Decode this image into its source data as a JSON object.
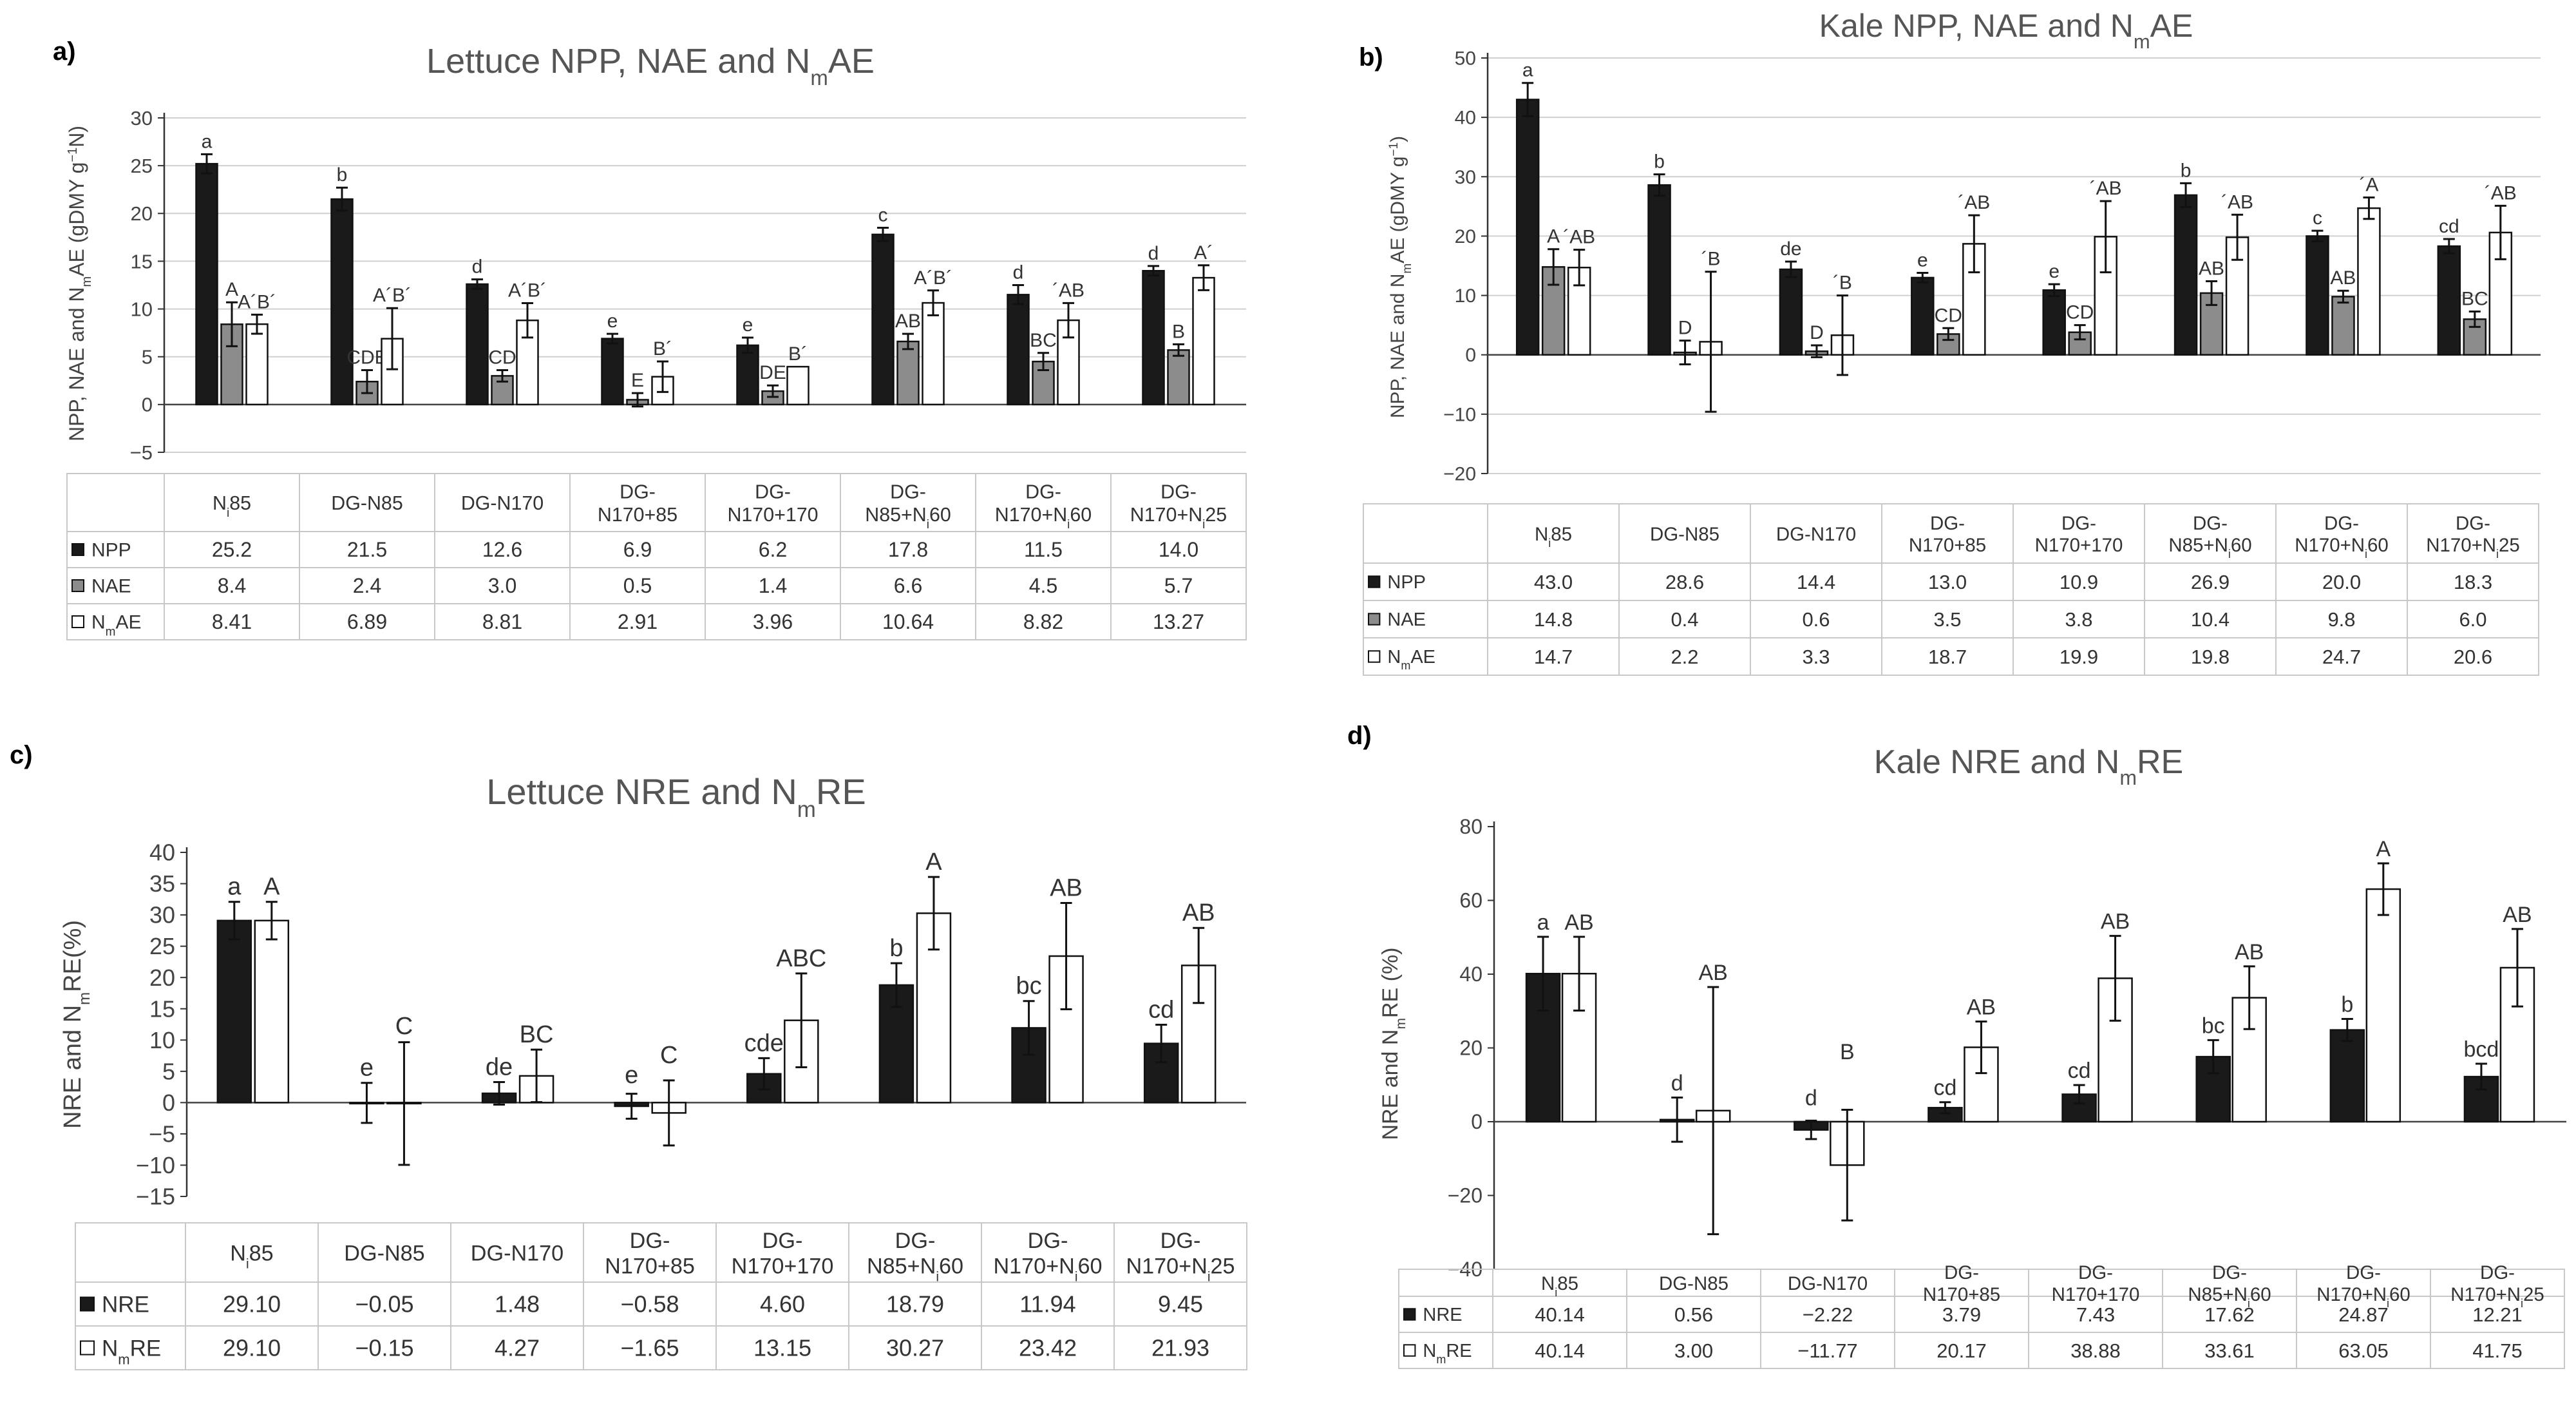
{
  "chart_data": [
    {
      "panel": "a)",
      "type": "bar",
      "title": "Lettuce NPP, NAE and NₘAE",
      "title_parts": [
        "Lettuce NPP, NAE and N",
        "m",
        "AE"
      ],
      "ylabel": "NPP, NAE and NₘAE (gDMY g⁻¹N)",
      "ylabel_parts": [
        "NPP, NAE and N",
        "m",
        "AE (gDMY g",
        "−1",
        "N)"
      ],
      "ylim": [
        -5,
        30
      ],
      "yticks": [
        "−5",
        "0",
        "5",
        "10",
        "15",
        "20",
        "25",
        "30"
      ],
      "ytick_values": [
        -5,
        0,
        5,
        10,
        15,
        20,
        25,
        30
      ],
      "categories": [
        "Nᵢ 85",
        "DG-N85",
        "DG-N170",
        "DG-N170+85",
        "DG-N170+170",
        "DG-N85+Nᵢ 60",
        "DG-N170+Nᵢ 60",
        "DG-N170+Nᵢ 25"
      ],
      "category_parts": [
        [
          [
            "N",
            "i",
            "85"
          ]
        ],
        [
          [
            "DG-N85"
          ]
        ],
        [
          [
            "DG-N170"
          ]
        ],
        [
          [
            "DG-"
          ],
          [
            "N170+85"
          ]
        ],
        [
          [
            "DG-"
          ],
          [
            "N170+170"
          ]
        ],
        [
          [
            "DG-"
          ],
          [
            "N85+N",
            "i",
            "60"
          ]
        ],
        [
          [
            "DG-"
          ],
          [
            "N170+N",
            "i",
            "60"
          ]
        ],
        [
          [
            "DG-"
          ],
          [
            "N170+N",
            "i",
            "25"
          ]
        ]
      ],
      "series": [
        {
          "name": "NPP",
          "legend_parts": [
            "NPP"
          ],
          "color": "#1a1a1a",
          "values": [
            25.2,
            21.5,
            12.6,
            6.9,
            6.2,
            17.8,
            11.5,
            14.0
          ],
          "errors": [
            1.0,
            1.2,
            0.5,
            0.5,
            0.8,
            0.7,
            1.0,
            0.5
          ],
          "table": [
            "25.2",
            "21.5",
            "12.6",
            "6.9",
            "6.2",
            "17.8",
            "11.5",
            "14.0"
          ],
          "letters": [
            "a",
            "b",
            "d",
            "e",
            "e",
            "c",
            "d",
            "d"
          ]
        },
        {
          "name": "NAE",
          "legend_parts": [
            "NAE"
          ],
          "color": "#8c8c8c",
          "values": [
            8.4,
            2.4,
            3.0,
            0.5,
            1.4,
            6.6,
            4.5,
            5.7
          ],
          "errors": [
            2.3,
            1.2,
            0.6,
            0.7,
            0.6,
            0.8,
            0.9,
            0.6
          ],
          "table": [
            "8.4",
            "2.4",
            "3.0",
            "0.5",
            "1.4",
            "6.6",
            "4.5",
            "5.7"
          ],
          "letters": [
            "A",
            "CDE",
            "CD",
            "E",
            "DE",
            "AB",
            "BC",
            "B"
          ]
        },
        {
          "name": "NₘAE",
          "legend_parts": [
            "N",
            "m",
            "AE"
          ],
          "color": "#ffffff",
          "values": [
            8.41,
            6.89,
            8.81,
            2.91,
            3.96,
            10.64,
            8.82,
            13.27
          ],
          "errors": [
            1.0,
            3.2,
            1.8,
            1.6,
            0,
            1.3,
            1.8,
            1.3
          ],
          "table": [
            "8.41",
            "6.89",
            "8.81",
            "2.91",
            "3.96",
            "10.64",
            "8.82",
            "13.27"
          ],
          "letters": [
            "A´B´",
            "A´B´",
            "A´B´",
            "B´",
            "B´",
            "A´B´",
            "´AB",
            "A´"
          ]
        }
      ]
    },
    {
      "panel": "b)",
      "type": "bar",
      "title": "Kale NPP, NAE and NₘAE",
      "title_parts": [
        "Kale NPP, NAE and N",
        "m",
        "AE"
      ],
      "ylabel": "NPP, NAE and NₘAE (gDMY g⁻¹)",
      "ylabel_parts": [
        "NPP, NAE and N",
        "m",
        "AE (gDMY g",
        "−1",
        ")"
      ],
      "ylim": [
        -20,
        50
      ],
      "yticks": [
        "−20",
        "−10",
        "0",
        "10",
        "20",
        "30",
        "40",
        "50"
      ],
      "ytick_values": [
        -20,
        -10,
        0,
        10,
        20,
        30,
        40,
        50
      ],
      "categories": [
        "Nᵢ 85",
        "DG-N85",
        "DG-N170",
        "DG-N170+85",
        "DG-N170+170",
        "DG-N85+Nᵢ 60",
        "DG-N170+Nᵢ 60",
        "DG-N170+Nᵢ 25"
      ],
      "category_parts": [
        [
          [
            "N",
            "i",
            "85"
          ]
        ],
        [
          [
            "DG-N85"
          ]
        ],
        [
          [
            "DG-N170"
          ]
        ],
        [
          [
            "DG-"
          ],
          [
            "N170+85"
          ]
        ],
        [
          [
            "DG-"
          ],
          [
            "N170+170"
          ]
        ],
        [
          [
            "DG-"
          ],
          [
            "N85+N",
            "i",
            "60"
          ]
        ],
        [
          [
            "DG-"
          ],
          [
            "N170+N",
            "i",
            "60"
          ]
        ],
        [
          [
            "DG-"
          ],
          [
            "N170+N",
            "i",
            "25"
          ]
        ]
      ],
      "series": [
        {
          "name": "NPP",
          "legend_parts": [
            "NPP"
          ],
          "color": "#1a1a1a",
          "values": [
            43.0,
            28.6,
            14.4,
            13.0,
            10.9,
            26.9,
            20.0,
            18.3
          ],
          "errors": [
            2.8,
            1.8,
            1.3,
            0.8,
            1.0,
            2.0,
            0.9,
            1.2
          ],
          "table": [
            "43.0",
            "28.6",
            "14.4",
            "13.0",
            "10.9",
            "26.9",
            "20.0",
            "18.3"
          ],
          "letters": [
            "a",
            "b",
            "de",
            "e",
            "e",
            "b",
            "c",
            "cd"
          ]
        },
        {
          "name": "NAE",
          "legend_parts": [
            "NAE"
          ],
          "color": "#8c8c8c",
          "values": [
            14.8,
            0.4,
            0.6,
            3.5,
            3.8,
            10.4,
            9.8,
            6.0
          ],
          "errors": [
            3.0,
            2.0,
            1.0,
            1.0,
            1.2,
            2.0,
            1.0,
            1.3
          ],
          "table": [
            "14.8",
            "0.4",
            "0.6",
            "3.5",
            "3.8",
            "10.4",
            "9.8",
            "6.0"
          ],
          "letters": [
            "A",
            "D",
            "D",
            "CD",
            "CD",
            "AB",
            "AB",
            "BC"
          ]
        },
        {
          "name": "NₘAE",
          "legend_parts": [
            "N",
            "m",
            "AE"
          ],
          "color": "#ffffff",
          "values": [
            14.7,
            2.2,
            3.3,
            18.7,
            19.9,
            19.8,
            24.7,
            20.6
          ],
          "errors": [
            3.0,
            11.8,
            6.7,
            4.8,
            6.0,
            3.8,
            1.8,
            4.5
          ],
          "table": [
            "14.7",
            "2.2",
            "3.3",
            "18.7",
            "19.9",
            "19.8",
            "24.7",
            "20.6"
          ],
          "letters": [
            "´AB",
            "´B",
            "´B",
            "´AB",
            "´AB",
            "´AB",
            "´A",
            "´AB"
          ]
        }
      ]
    },
    {
      "panel": "c)",
      "type": "bar",
      "title": "Lettuce NRE and NₘRE",
      "title_parts": [
        "Lettuce NRE and N",
        "m",
        "RE"
      ],
      "ylabel": "NRE and NₘRE(%)",
      "ylabel_parts": [
        "NRE and N",
        "m",
        "RE(%)"
      ],
      "ylim": [
        -15,
        40
      ],
      "yticks": [
        "−15",
        "−10",
        "−5",
        "0",
        "5",
        "10",
        "15",
        "20",
        "25",
        "30",
        "35",
        "40"
      ],
      "ytick_values": [
        -15,
        -10,
        -5,
        0,
        5,
        10,
        15,
        20,
        25,
        30,
        35,
        40
      ],
      "categories": [
        "Nᵢ 85",
        "DG-N85",
        "DG-N170",
        "DG-N170+85",
        "DG-N170+170",
        "DG-N85+Nᵢ 60",
        "DG-N170+Nᵢ 60",
        "DG-N170+Nᵢ 25"
      ],
      "category_parts": [
        [
          [
            "N",
            "i",
            "85"
          ]
        ],
        [
          [
            "DG-N85"
          ]
        ],
        [
          [
            "DG-N170"
          ]
        ],
        [
          [
            "DG-"
          ],
          [
            "N170+85"
          ]
        ],
        [
          [
            "DG-"
          ],
          [
            "N170+170"
          ]
        ],
        [
          [
            "DG-"
          ],
          [
            "N85+N",
            "i",
            "60"
          ]
        ],
        [
          [
            "DG-"
          ],
          [
            "N170+N",
            "i",
            "60"
          ]
        ],
        [
          [
            "DG-"
          ],
          [
            "N170+N",
            "i",
            "25"
          ]
        ]
      ],
      "series": [
        {
          "name": "NRE",
          "legend_parts": [
            "NRE"
          ],
          "color": "#1a1a1a",
          "values": [
            29.1,
            -0.05,
            1.48,
            -0.58,
            4.6,
            18.79,
            11.94,
            9.45
          ],
          "errors": [
            3.0,
            3.2,
            1.8,
            2.0,
            2.5,
            3.5,
            4.3,
            3.0
          ],
          "table": [
            "29.10",
            "−0.05",
            "1.48",
            "−0.58",
            "4.60",
            "18.79",
            "11.94",
            "9.45"
          ],
          "letters": [
            "a",
            "e",
            "de",
            "e",
            "cde",
            "b",
            "bc",
            "cd"
          ]
        },
        {
          "name": "NₘRE",
          "legend_parts": [
            "N",
            "m",
            "RE"
          ],
          "color": "#ffffff",
          "values": [
            29.1,
            -0.15,
            4.27,
            -1.65,
            13.15,
            30.27,
            23.42,
            21.93
          ],
          "errors": [
            3.0,
            9.8,
            4.2,
            5.2,
            7.5,
            5.8,
            8.5,
            6.0
          ],
          "table": [
            "29.10",
            "−0.15",
            "4.27",
            "−1.65",
            "13.15",
            "30.27",
            "23.42",
            "21.93"
          ],
          "letters": [
            "A",
            "C",
            "BC",
            "C",
            "ABC",
            "A",
            "AB",
            "AB"
          ]
        }
      ]
    },
    {
      "panel": "d)",
      "type": "bar",
      "title": "Kale NRE and NₘRE",
      "title_parts": [
        "Kale NRE and N",
        "m",
        "RE"
      ],
      "ylabel": "NRE and NₘRE (%)",
      "ylabel_parts": [
        "NRE and N",
        "m",
        "RE (%)"
      ],
      "ylim": [
        -40,
        80
      ],
      "yticks": [
        "−40",
        "−20",
        "0",
        "20",
        "40",
        "60",
        "80"
      ],
      "ytick_values": [
        -40,
        -20,
        0,
        20,
        40,
        60,
        80
      ],
      "categories": [
        "Nᵢ 85",
        "DG-N85",
        "DG-N170",
        "DG-N170+85",
        "DG-N170+170",
        "DG-N85+Nᵢ 60",
        "DG-N170+Nᵢ 60",
        "DG-N170+Nᵢ 25"
      ],
      "category_parts": [
        [
          [
            "N",
            "i",
            "85"
          ]
        ],
        [
          [
            "DG-N85"
          ]
        ],
        [
          [
            "DG-N170"
          ]
        ],
        [
          [
            "DG-"
          ],
          [
            "N170+85"
          ]
        ],
        [
          [
            "DG-"
          ],
          [
            "N170+170"
          ]
        ],
        [
          [
            "DG-"
          ],
          [
            "N85+N",
            "i",
            "60"
          ]
        ],
        [
          [
            "DG-"
          ],
          [
            "N170+N",
            "i",
            "60"
          ]
        ],
        [
          [
            "DG-"
          ],
          [
            "N170+N",
            "i",
            "25"
          ]
        ]
      ],
      "series": [
        {
          "name": "NRE",
          "legend_parts": [
            "NRE"
          ],
          "color": "#1a1a1a",
          "values": [
            40.14,
            0.56,
            -2.22,
            3.79,
            7.43,
            17.62,
            24.87,
            12.21
          ],
          "errors": [
            10.0,
            6.0,
            2.5,
            1.5,
            2.5,
            4.5,
            3.0,
            3.5
          ],
          "table": [
            "40.14",
            "0.56",
            "−2.22",
            "3.79",
            "7.43",
            "17.62",
            "24.87",
            "12.21"
          ],
          "letters": [
            "a",
            "d",
            "d",
            "cd",
            "cd",
            "bc",
            "b",
            "bcd"
          ]
        },
        {
          "name": "NₘRE",
          "legend_parts": [
            "N",
            "m",
            "RE"
          ],
          "color": "#ffffff",
          "values": [
            40.14,
            3.0,
            -11.77,
            20.17,
            38.88,
            33.61,
            63.05,
            41.75
          ],
          "errors": [
            10.0,
            33.5,
            15.0,
            7.0,
            11.5,
            8.5,
            7.0,
            10.5
          ],
          "table": [
            "40.14",
            "3.00",
            "−11.77",
            "20.17",
            "38.88",
            "33.61",
            "63.05",
            "41.75"
          ],
          "letters": [
            "AB",
            "AB",
            "B",
            "AB",
            "AB",
            "AB",
            "A",
            "AB"
          ]
        }
      ]
    }
  ]
}
